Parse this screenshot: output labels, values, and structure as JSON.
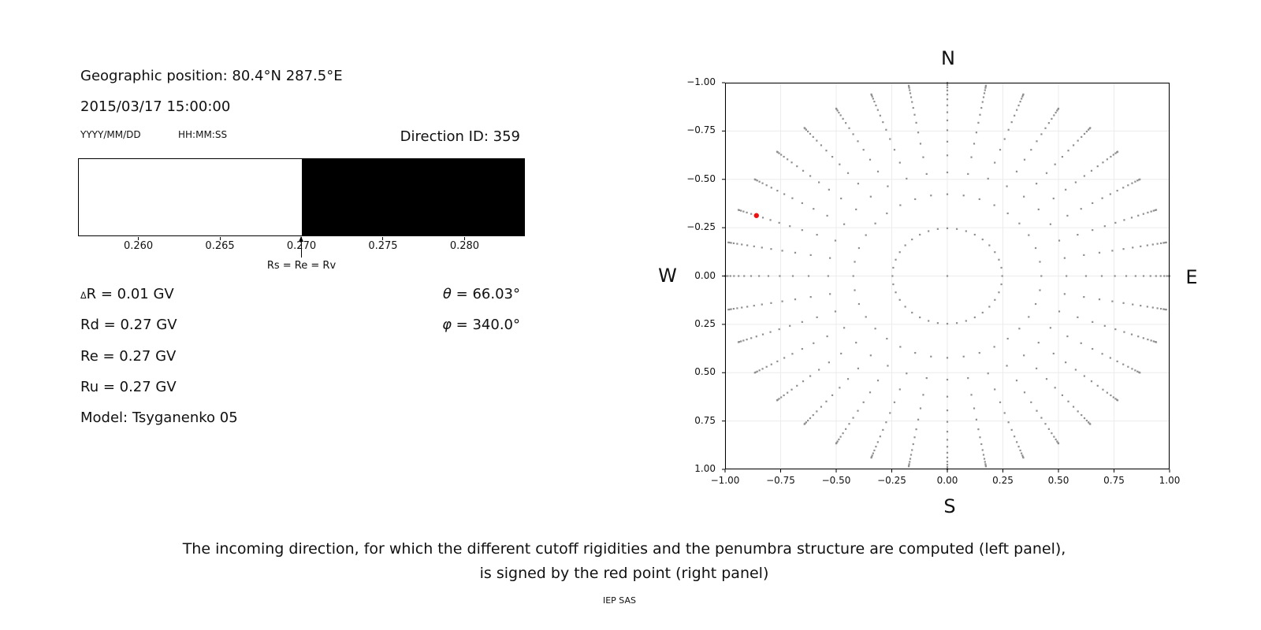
{
  "left_panel": {
    "geo_position": "Geographic position: 80.4°N 287.5°E",
    "datetime": "2015/03/17 15:00:00",
    "date_format": "YYYY/MM/DD",
    "time_format": "HH:MM:SS",
    "direction_id": "Direction ID: 359",
    "penumbra": {
      "axis_min": 0.2563,
      "axis_max": 0.2837,
      "tick_values": [
        0.26,
        0.265,
        0.27,
        0.275,
        0.28
      ],
      "tick_labels": [
        "0.260",
        "0.265",
        "0.270",
        "0.275",
        "0.280"
      ],
      "boundary_value": 0.27,
      "allowed_color": "#ffffff",
      "forbidden_color": "#000000",
      "arrow_label": "Rs = Re = Rv"
    },
    "values": {
      "delta_r": {
        "symbol": "Δ",
        "rest": "R = 0.01 GV"
      },
      "rd": "Rd = 0.27 GV",
      "re": "Re = 0.27 GV",
      "ru": "Ru = 0.27 GV",
      "model": "Model: Tsyganenko 05",
      "theta": {
        "symbol": "θ",
        "rest": " = 66.03°"
      },
      "phi": {
        "symbol": "φ",
        "rest": " = 340.0°"
      }
    }
  },
  "chart_data": {
    "type": "scatter",
    "title": "",
    "xlabel": "",
    "ylabel": "",
    "xlim": [
      -1,
      1
    ],
    "ylim": [
      -1,
      1
    ],
    "grid": true,
    "compass": {
      "top": "N",
      "right": "E",
      "bottom": "S",
      "left": "W"
    },
    "tick_values": [
      -1,
      -0.75,
      -0.5,
      -0.25,
      0,
      0.25,
      0.5,
      0.75,
      1
    ],
    "xtick_labels": [
      "−1.00",
      "−0.75",
      "−0.50",
      "−0.25",
      "0.00",
      "0.25",
      "0.50",
      "0.75",
      "1.00"
    ],
    "ytick_labels": [
      "−1.00",
      "−0.75",
      "−0.50",
      "−0.25",
      "0.00",
      "0.25",
      "0.50",
      "0.75",
      "1.00"
    ],
    "spoke_angles_deg": [
      0,
      10,
      20,
      30,
      40,
      50,
      60,
      70,
      80,
      90,
      100,
      110,
      120,
      130,
      140,
      150,
      160,
      170,
      180,
      190,
      200,
      210,
      220,
      230,
      240,
      250,
      260,
      270,
      280,
      290,
      300,
      310,
      320,
      330,
      340,
      350
    ],
    "dot_radii": [
      0.247,
      0.423,
      0.536,
      0.624,
      0.695,
      0.754,
      0.805,
      0.847,
      0.883,
      0.914,
      0.939,
      0.96,
      0.976,
      0.988,
      0.996,
      1.0
    ],
    "center_dot": true,
    "dot_color": "#8f8f8f",
    "grid_color": "#ececec",
    "red_point": {
      "azimuth_deg": 340.0,
      "zenith_deg": 66.03,
      "plot_angle_deg": 160,
      "radius": 0.914,
      "radius_index": 9,
      "color": "#ee1111"
    }
  },
  "caption": {
    "line1": "The incoming direction, for which the different cutoff rigidities and the penumbra structure are computed (left panel),",
    "line2": "is signed by the red point (right panel)",
    "credit": "IEP SAS"
  }
}
